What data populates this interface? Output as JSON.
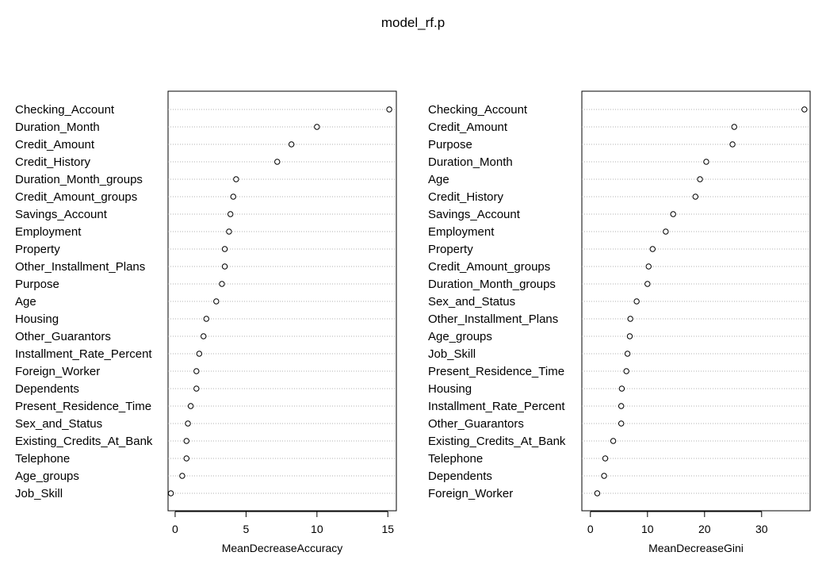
{
  "title": "model_rf.p",
  "chart_data": [
    {
      "type": "scatter",
      "style": "dotchart",
      "xlabel": "MeanDecreaseAccuracy",
      "xlim": [
        -0.5,
        15.6
      ],
      "xticks": [
        0,
        5,
        10,
        15
      ],
      "grid": "dotted horizontal lines",
      "categories": [
        "Checking_Account",
        "Duration_Month",
        "Credit_Amount",
        "Credit_History",
        "Duration_Month_groups",
        "Credit_Amount_groups",
        "Savings_Account",
        "Employment",
        "Property",
        "Other_Installment_Plans",
        "Purpose",
        "Age",
        "Housing",
        "Other_Guarantors",
        "Installment_Rate_Percent",
        "Foreign_Worker",
        "Dependents",
        "Present_Residence_Time",
        "Sex_and_Status",
        "Existing_Credits_At_Bank",
        "Telephone",
        "Age_groups",
        "Job_Skill"
      ],
      "values": [
        15.1,
        10.0,
        8.2,
        7.2,
        4.3,
        4.1,
        3.9,
        3.8,
        3.5,
        3.5,
        3.3,
        2.9,
        2.2,
        2.0,
        1.7,
        1.5,
        1.5,
        1.1,
        0.9,
        0.8,
        0.8,
        0.5,
        -0.3
      ]
    },
    {
      "type": "scatter",
      "style": "dotchart",
      "xlabel": "MeanDecreaseGini",
      "xlim": [
        -1.5,
        38.5
      ],
      "xticks": [
        0,
        10,
        20,
        30
      ],
      "grid": "dotted horizontal lines",
      "categories": [
        "Checking_Account",
        "Credit_Amount",
        "Purpose",
        "Duration_Month",
        "Age",
        "Credit_History",
        "Savings_Account",
        "Employment",
        "Property",
        "Credit_Amount_groups",
        "Duration_Month_groups",
        "Sex_and_Status",
        "Other_Installment_Plans",
        "Age_groups",
        "Job_Skill",
        "Present_Residence_Time",
        "Housing",
        "Installment_Rate_Percent",
        "Other_Guarantors",
        "Existing_Credits_At_Bank",
        "Telephone",
        "Dependents",
        "Foreign_Worker"
      ],
      "values": [
        37.5,
        25.2,
        24.9,
        20.3,
        19.2,
        18.4,
        14.5,
        13.2,
        10.9,
        10.2,
        10.0,
        8.1,
        7.0,
        6.9,
        6.5,
        6.3,
        5.5,
        5.4,
        5.4,
        4.0,
        2.6,
        2.4,
        1.2
      ]
    }
  ]
}
